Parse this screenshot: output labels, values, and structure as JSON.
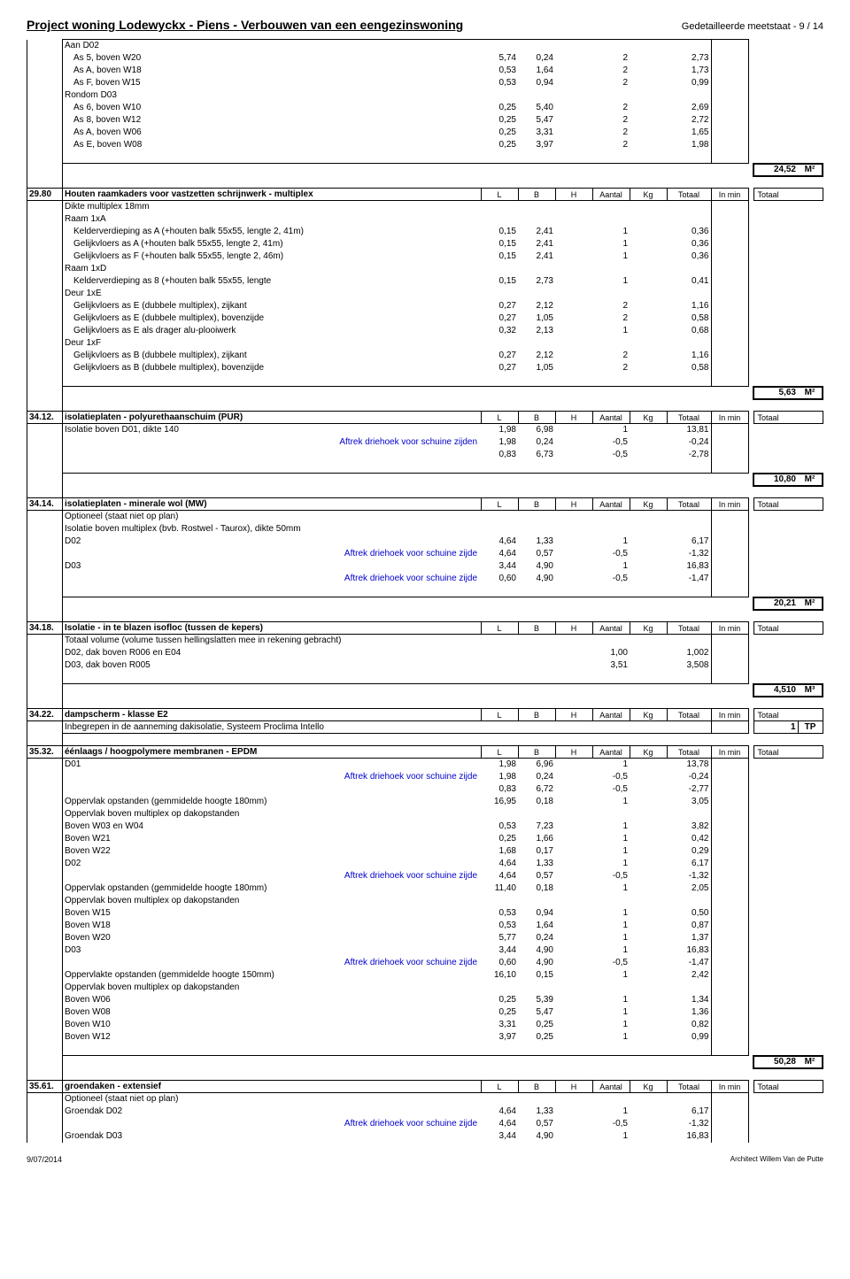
{
  "page": {
    "title": "Project woning Lodewyckx - Piens - Verbouwen van een eengezinswoning",
    "subtitle_prefix": "Gedetailleerde meetstaat - ",
    "page_no": "9 / 14",
    "date": "9/07/2014",
    "architect": "Architect Willem Van de Putte"
  },
  "labels": {
    "L": "L",
    "B": "B",
    "H": "H",
    "Aantal": "Aantal",
    "Kg": "Kg",
    "Totaal": "Totaal",
    "In_min": "In min",
    "Totaal2": "Totaal",
    "M2": "M²",
    "M3": "M³",
    "TP": "TP"
  },
  "block0": {
    "head": "Aan D02",
    "rows": [
      {
        "d": "As 5, boven W20",
        "L": "5,74",
        "B": "0,24",
        "A": "2",
        "T": "2,73"
      },
      {
        "d": "As A, boven W18",
        "L": "0,53",
        "B": "1,64",
        "A": "2",
        "T": "1,73"
      },
      {
        "d": "As F, boven W15",
        "L": "0,53",
        "B": "0,94",
        "A": "2",
        "T": "0,99"
      }
    ],
    "head2": "Rondom D03",
    "rows2": [
      {
        "d": "As 6, boven W10",
        "L": "0,25",
        "B": "5,40",
        "A": "2",
        "T": "2,69"
      },
      {
        "d": "As 8, boven W12",
        "L": "0,25",
        "B": "5,47",
        "A": "2",
        "T": "2,72"
      },
      {
        "d": "As A, boven W06",
        "L": "0,25",
        "B": "3,31",
        "A": "2",
        "T": "1,65"
      },
      {
        "d": "As E, boven W08",
        "L": "0,25",
        "B": "3,97",
        "A": "2",
        "T": "1,98"
      }
    ],
    "sum": "24,52"
  },
  "s29_80": {
    "code": "29.80",
    "title": "Houten raamkaders voor vastzetten schrijnwerk - multiplex",
    "sub1": "Dikte multiplex 18mm",
    "sub2": "Raam 1xA",
    "rows_a": [
      {
        "d": "Kelderverdieping as A  (+houten balk 55x55, lengte 2, 41m)",
        "L": "0,15",
        "B": "2,41",
        "A": "1",
        "T": "0,36"
      },
      {
        "d": "Gelijkvloers as A (+houten balk 55x55, lengte 2, 41m)",
        "L": "0,15",
        "B": "2,41",
        "A": "1",
        "T": "0,36"
      },
      {
        "d": "Gelijkvloers as F (+houten balk 55x55, lengte 2, 46m)",
        "L": "0,15",
        "B": "2,41",
        "A": "1",
        "T": "0,36"
      }
    ],
    "sub3": "Raam 1xD",
    "rows_d": [
      {
        "d": "Kelderverdieping as 8 (+houten balk 55x55, lengte",
        "L": "0,15",
        "B": "2,73",
        "A": "1",
        "T": "0,41"
      }
    ],
    "sub4": "Deur 1xE",
    "rows_e": [
      {
        "d": "Gelijkvloers as E (dubbele multiplex), zijkant",
        "L": "0,27",
        "B": "2,12",
        "A": "2",
        "T": "1,16"
      },
      {
        "d": "Gelijkvloers as E (dubbele multiplex), bovenzijde",
        "L": "0,27",
        "B": "1,05",
        "A": "2",
        "T": "0,58"
      },
      {
        "d": "Gelijkvloers as E als drager alu-plooiwerk",
        "L": "0,32",
        "B": "2,13",
        "A": "1",
        "T": "0,68"
      }
    ],
    "sub5": "Deur 1xF",
    "rows_f": [
      {
        "d": "Gelijkvloers as B (dubbele multiplex), zijkant",
        "L": "0,27",
        "B": "2,12",
        "A": "2",
        "T": "1,16"
      },
      {
        "d": "Gelijkvloers as B (dubbele multiplex), bovenzijde",
        "L": "0,27",
        "B": "1,05",
        "A": "2",
        "T": "0,58"
      }
    ],
    "sum": "5,63"
  },
  "s34_12": {
    "code": "34.12.",
    "title": "isolatieplaten - polyurethaanschuim (PUR)",
    "rows": [
      {
        "d": "Isolatie boven D01, dikte 140",
        "L": "1,98",
        "B": "6,98",
        "A": "1",
        "T": "13,81"
      },
      {
        "d": "Aftrek driehoek voor schuine zijden",
        "blue": true,
        "al": "r",
        "L": "1,98",
        "B": "0,24",
        "A": "-0,5",
        "T": "-0,24"
      },
      {
        "d": "",
        "L": "0,83",
        "B": "6,73",
        "A": "-0,5",
        "T": "-2,78"
      }
    ],
    "sum": "10,80"
  },
  "s34_14": {
    "code": "34.14.",
    "title": "isolatieplaten - minerale wol (MW)",
    "sub1": "Optioneel (staat niet op plan)",
    "sub2": "Isolatie boven multiplex (bvb. Rostwel - Taurox), dikte 50mm",
    "rows": [
      {
        "d": "D02",
        "L": "4,64",
        "B": "1,33",
        "A": "1",
        "T": "6,17"
      },
      {
        "d": "Aftrek driehoek voor schuine zijde",
        "blue": true,
        "al": "r",
        "L": "4,64",
        "B": "0,57",
        "A": "-0,5",
        "T": "-1,32"
      },
      {
        "d": "D03",
        "L": "3,44",
        "B": "4,90",
        "A": "1",
        "T": "16,83"
      },
      {
        "d": "Aftrek driehoek voor schuine zijde",
        "blue": true,
        "al": "r",
        "L": "0,60",
        "B": "4,90",
        "A": "-0,5",
        "T": "-1,47"
      }
    ],
    "sum": "20,21"
  },
  "s34_18": {
    "code": "34.18.",
    "title": "Isolatie - in te blazen isofloc (tussen de kepers)",
    "sub1": "Totaal volume (volume tussen hellingslatten mee in rekening gebracht)",
    "rows": [
      {
        "d": "D02, dak boven R006 en E04",
        "A": "1,00",
        "T": "1,002"
      },
      {
        "d": "D03, dak boven R005",
        "A": "3,51",
        "T": "3,508"
      }
    ],
    "sum": "4,510",
    "unit": "M³"
  },
  "s34_22": {
    "code": "34.22.",
    "title": "dampscherm - klasse E2",
    "sub1": "Inbegrepen in de aanneming dakisolatie, Systeem Proclima Intello",
    "sum": "1",
    "unit": "TP"
  },
  "s35_32": {
    "code": "35.32.",
    "title": "éénlaags / hoogpolymere membranen - EPDM",
    "rows": [
      {
        "d": "D01",
        "L": "1,98",
        "B": "6,96",
        "A": "1",
        "T": "13,78"
      },
      {
        "d": "Aftrek driehoek voor schuine zijde",
        "blue": true,
        "al": "r",
        "L": "1,98",
        "B": "0,24",
        "A": "-0,5",
        "T": "-0,24"
      },
      {
        "d": "",
        "L": "0,83",
        "B": "6,72",
        "A": "-0,5",
        "T": "-2,77"
      },
      {
        "d": "Oppervlak opstanden (gemmidelde hoogte 180mm)",
        "L": "16,95",
        "B": "0,18",
        "A": "1",
        "T": "3,05"
      },
      {
        "d": "Oppervlak boven multiplex op dakopstanden"
      },
      {
        "d": "Boven W03 en W04",
        "L": "0,53",
        "B": "7,23",
        "A": "1",
        "T": "3,82"
      },
      {
        "d": "Boven W21",
        "L": "0,25",
        "B": "1,66",
        "A": "1",
        "T": "0,42"
      },
      {
        "d": "Boven W22",
        "L": "1,68",
        "B": "0,17",
        "A": "1",
        "T": "0,29"
      },
      {
        "d": "D02",
        "L": "4,64",
        "B": "1,33",
        "A": "1",
        "T": "6,17"
      },
      {
        "d": "Aftrek driehoek voor schuine zijde",
        "blue": true,
        "al": "r",
        "L": "4,64",
        "B": "0,57",
        "A": "-0,5",
        "T": "-1,32"
      },
      {
        "d": "Oppervlak opstanden (gemmidelde hoogte 180mm)",
        "L": "11,40",
        "B": "0,18",
        "A": "1",
        "T": "2,05"
      },
      {
        "d": "Oppervlak boven multiplex op dakopstanden"
      },
      {
        "d": "Boven W15",
        "L": "0,53",
        "B": "0,94",
        "A": "1",
        "T": "0,50"
      },
      {
        "d": "Boven W18",
        "L": "0,53",
        "B": "1,64",
        "A": "1",
        "T": "0,87"
      },
      {
        "d": "Boven W20",
        "L": "5,77",
        "B": "0,24",
        "A": "1",
        "T": "1,37"
      },
      {
        "d": "D03",
        "L": "3,44",
        "B": "4,90",
        "A": "1",
        "T": "16,83"
      },
      {
        "d": "Aftrek driehoek voor schuine zijde",
        "blue": true,
        "al": "r",
        "L": "0,60",
        "B": "4,90",
        "A": "-0,5",
        "T": "-1,47"
      },
      {
        "d": "Oppervlakte opstanden (gemmidelde hoogte 150mm)",
        "L": "16,10",
        "B": "0,15",
        "A": "1",
        "T": "2,42"
      },
      {
        "d": "Oppervlak boven multiplex op dakopstanden"
      },
      {
        "d": "Boven W06",
        "L": "0,25",
        "B": "5,39",
        "A": "1",
        "T": "1,34"
      },
      {
        "d": "Boven W08",
        "L": "0,25",
        "B": "5,47",
        "A": "1",
        "T": "1,36"
      },
      {
        "d": "Boven W10",
        "L": "3,31",
        "B": "0,25",
        "A": "1",
        "T": "0,82"
      },
      {
        "d": "Boven W12",
        "L": "3,97",
        "B": "0,25",
        "A": "1",
        "T": "0,99"
      }
    ],
    "sum": "50,28"
  },
  "s35_61": {
    "code": "35.61.",
    "title": "groendaken - extensief",
    "sub1": "Optioneel (staat niet op plan)",
    "rows": [
      {
        "d": "Groendak D02",
        "L": "4,64",
        "B": "1,33",
        "A": "1",
        "T": "6,17"
      },
      {
        "d": "Aftrek driehoek voor schuine zijde",
        "blue": true,
        "al": "r",
        "L": "4,64",
        "B": "0,57",
        "A": "-0,5",
        "T": "-1,32"
      },
      {
        "d": "Groendak D03",
        "L": "3,44",
        "B": "4,90",
        "A": "1",
        "T": "16,83"
      }
    ]
  }
}
